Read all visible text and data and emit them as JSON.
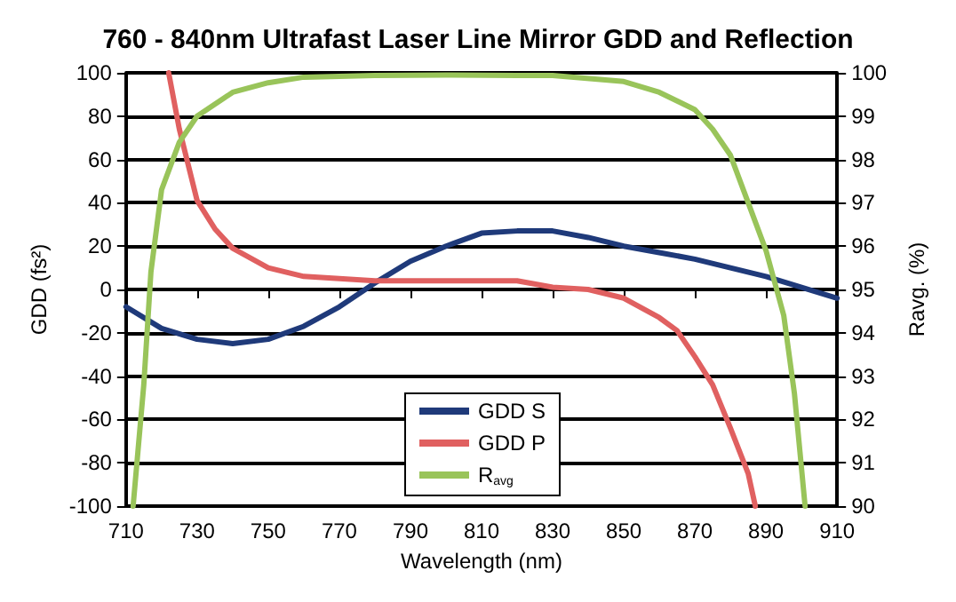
{
  "chart_data": {
    "type": "line",
    "title": "760 - 840nm Ultrafast Laser Line Mirror GDD and Reflection",
    "xlabel": "Wavelength (nm)",
    "ylabel": "GDD (fs²)",
    "y2label": "Ravg. (%)",
    "xlim": [
      710,
      910
    ],
    "xticks": [
      710,
      730,
      750,
      770,
      790,
      810,
      830,
      850,
      870,
      890,
      910
    ],
    "ylim": [
      -100,
      100
    ],
    "yticks": [
      -100,
      -80,
      -60,
      -40,
      -20,
      0,
      20,
      40,
      60,
      80,
      100
    ],
    "y2lim": [
      90,
      100
    ],
    "y2ticks": [
      90,
      91,
      92,
      93,
      94,
      95,
      96,
      97,
      98,
      99,
      100
    ],
    "grid": "y",
    "legend": "bottom",
    "marker": "none",
    "line_style": "solid",
    "series": [
      {
        "name": "GDD S",
        "color": "#1f3a7a",
        "x": [
          710,
          720,
          730,
          740,
          750,
          760,
          770,
          780,
          790,
          800,
          810,
          820,
          830,
          840,
          850,
          860,
          870,
          880,
          890,
          900,
          910
        ],
        "values": [
          -8,
          -18,
          -23,
          -25,
          -23,
          -17,
          -8,
          3,
          13,
          20,
          26,
          27,
          27,
          24,
          20,
          17,
          14,
          10,
          6,
          1,
          -4
        ]
      },
      {
        "name": "GDD P",
        "color": "#e06060",
        "x": [
          722,
          725,
          730,
          735,
          740,
          750,
          760,
          770,
          780,
          790,
          800,
          810,
          820,
          830,
          840,
          850,
          860,
          865,
          870,
          875,
          880,
          885,
          887
        ],
        "values": [
          100,
          74,
          41,
          28,
          19,
          10,
          6,
          5,
          4,
          4,
          4,
          4,
          4,
          1,
          0,
          -4,
          -13,
          -19,
          -31,
          -44,
          -64,
          -85,
          -100
        ]
      },
      {
        "name": "R$_{avg}$",
        "color": "#99c45a",
        "axis": "y2",
        "x": [
          712,
          715,
          717,
          720,
          725,
          730,
          740,
          750,
          760,
          780,
          800,
          820,
          830,
          850,
          860,
          870,
          875,
          880,
          885,
          890,
          895,
          898,
          901
        ],
        "values": [
          90,
          92.8,
          95.4,
          97.3,
          98.4,
          99,
          99.55,
          99.77,
          99.9,
          99.94,
          99.95,
          99.94,
          99.94,
          99.8,
          99.55,
          99.15,
          98.7,
          98.1,
          97,
          95.9,
          94.4,
          92.6,
          90
        ]
      }
    ]
  }
}
